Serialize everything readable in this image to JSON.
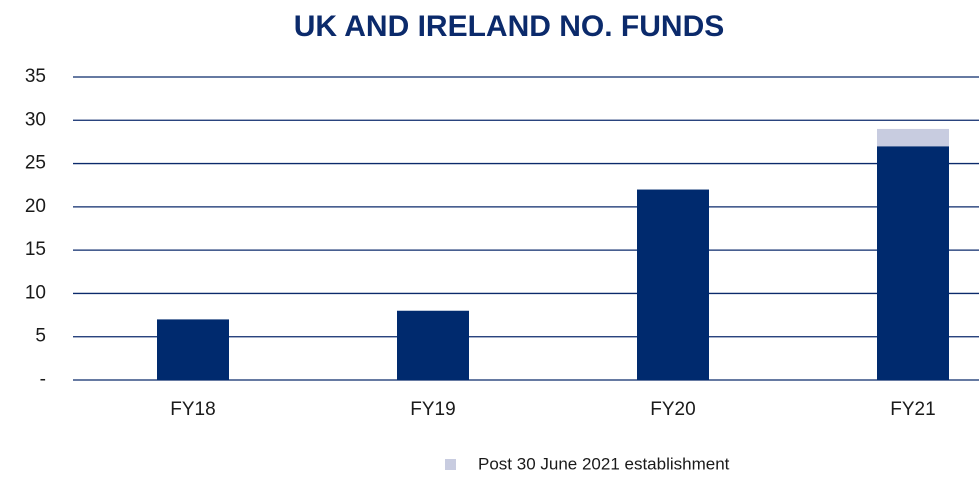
{
  "chart_data": {
    "type": "stacked_bar",
    "title": "UK AND IRELAND NO. FUNDS",
    "categories": [
      "FY18",
      "FY19",
      "FY20",
      "FY21"
    ],
    "series": [
      {
        "color": "#002a6e",
        "values": [
          7,
          8,
          22,
          27
        ]
      },
      {
        "name": "Post 30 June 2021 establishment",
        "color": "#c8cce0",
        "values": [
          null,
          null,
          null,
          2
        ]
      }
    ],
    "ylim": [
      0,
      35
    ],
    "yticks": [
      {
        "value": 0,
        "label": "-"
      },
      5,
      10,
      15,
      20,
      25,
      30,
      35
    ],
    "grid": true,
    "grid_color": "#0b2a6b",
    "legend": "bottom"
  }
}
